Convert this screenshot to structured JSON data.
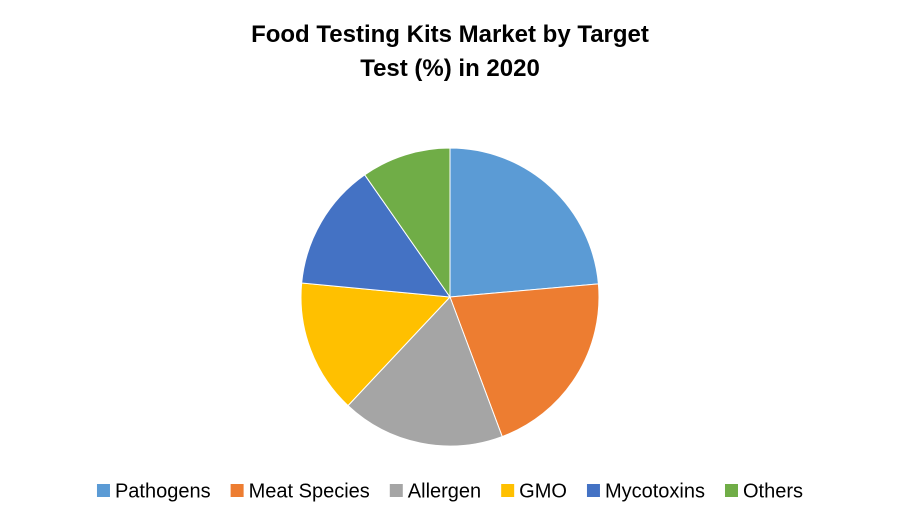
{
  "chart_data": {
    "type": "pie",
    "title": "Food Testing Kits Market by Target Test (%) in 2020",
    "categories": [
      "Pathogens",
      "Meat Species",
      "Allergen",
      "GMO",
      "Mycotoxins",
      "Others"
    ],
    "values": [
      23.6,
      20.7,
      17.7,
      14.5,
      13.8,
      9.7
    ],
    "colors": [
      "#5b9bd5",
      "#ed7d31",
      "#a5a5a5",
      "#ffc000",
      "#4472c4",
      "#70ad47"
    ],
    "legend": "bottom"
  }
}
